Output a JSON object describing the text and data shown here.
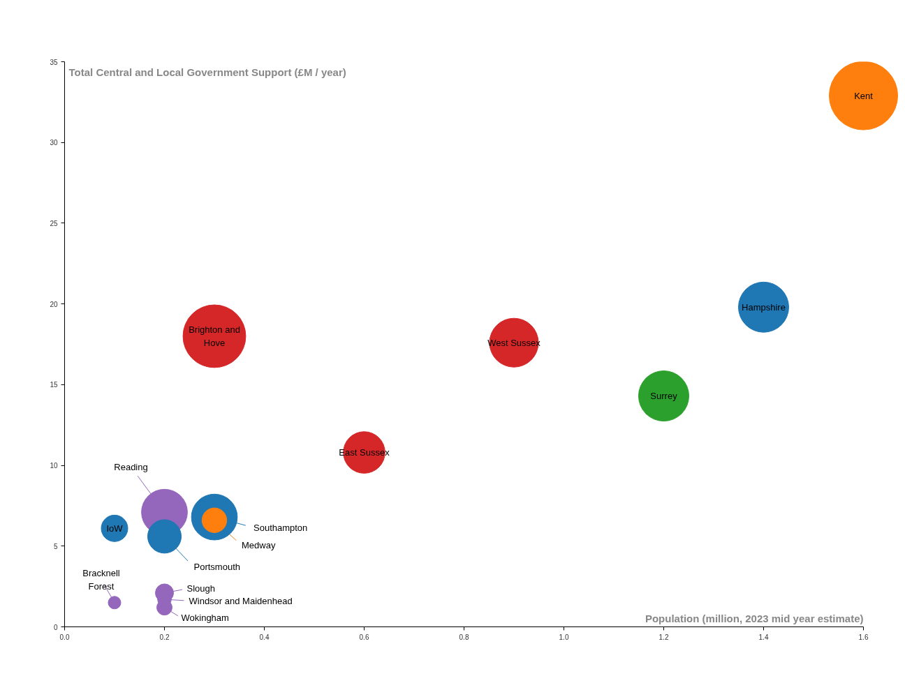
{
  "chart_data": {
    "type": "bubble",
    "xlabel": "Population (million, 2023 mid year estimate)",
    "ylabel": "Total Central and Local Government Support (£M / year)",
    "x": [
      1.6,
      1.4,
      0.9,
      1.2,
      0.6,
      0.3,
      0.2,
      0.3,
      0.3,
      0.1,
      0.2,
      0.1,
      0.2,
      0.2,
      0.2
    ],
    "values": [
      32.9,
      19.8,
      17.6,
      14.3,
      10.8,
      18.0,
      7.1,
      6.8,
      6.6,
      6.1,
      5.6,
      1.5,
      2.1,
      1.7,
      1.2
    ],
    "sizes": [
      1,
      0.54,
      0.51,
      0.54,
      0.37,
      0.84,
      0.45,
      0.45,
      0.13,
      0.15,
      0.24,
      0.034,
      0.07,
      0.04,
      0.05
    ],
    "colors": [
      "#ff7f0e",
      "#1f77b4",
      "#d62728",
      "#2ca02c",
      "#d62728",
      "#d62728",
      "#9467bd",
      "#1f77b4",
      "#ff7f0e",
      "#1f77b4",
      "#1f77b4",
      "#9467bd",
      "#9467bd",
      "#9467bd",
      "#9467bd"
    ],
    "annotations": [
      {
        "text": "Kent",
        "x": 1.6,
        "y": 32.9
      },
      {
        "text": "Hampshire",
        "x": 1.4,
        "y": 19.8
      },
      {
        "text": "West Sussex",
        "x": 0.9,
        "y": 17.6
      },
      {
        "text": "Surrey",
        "x": 1.2,
        "y": 14.3
      },
      {
        "text": "East Sussex",
        "x": 0.6,
        "y": 10.8
      },
      {
        "text": "Brighton and\nHove",
        "x": 0.3,
        "y": 18.0
      },
      {
        "text": "Reading",
        "x": 0.2,
        "y": 7.1
      },
      {
        "text": "Southampton",
        "x": 0.3,
        "y": 6.8
      },
      {
        "text": "Medway",
        "x": 0.3,
        "y": 6.6
      },
      {
        "text": "IoW",
        "x": 0.1,
        "y": 6.1
      },
      {
        "text": "Portsmouth",
        "x": 0.2,
        "y": 5.6
      },
      {
        "text": "Bracknell\nForest",
        "x": 0.1,
        "y": 1.5
      },
      {
        "text": "Slough",
        "x": 0.2,
        "y": 2.1
      },
      {
        "text": "Windsor and Maidenhead",
        "x": 0.2,
        "y": 1.7
      },
      {
        "text": "Wokingham",
        "x": 0.2,
        "y": 1.2
      }
    ],
    "xlim": [
      0,
      1.6
    ],
    "xticks": [
      {
        "value": 0,
        "label": "0.0"
      },
      0.2,
      0.4,
      0.6,
      0.8,
      {
        "value": 1,
        "label": "1.0"
      },
      1.2,
      1.4,
      1.6
    ],
    "ylim": [
      0,
      35
    ],
    "yticks": [
      0,
      5,
      10,
      15,
      20,
      25,
      30,
      35
    ],
    "grid": false
  }
}
